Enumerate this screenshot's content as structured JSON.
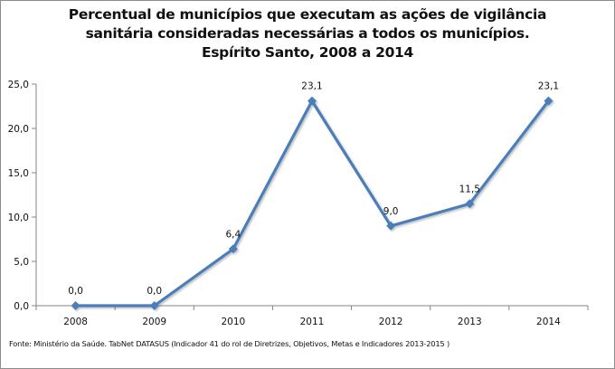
{
  "chart_data": {
    "type": "line",
    "title": "Percentual de municípios que executam as ações de vigilância sanitária consideradas necessárias a todos os municípios. Espírito Santo, 2008 a 2014",
    "title_lines": [
      "Percentual de municípios que executam as ações de vigilância",
      "sanitária consideradas necessárias a todos os municípios.",
      "Espírito Santo, 2008 a 2014"
    ],
    "xlabel": "",
    "ylabel": "",
    "categories": [
      "2008",
      "2009",
      "2010",
      "2011",
      "2012",
      "2013",
      "2014"
    ],
    "series": [
      {
        "name": "Percentual",
        "values": [
          0.0,
          0.0,
          6.4,
          23.1,
          9.0,
          11.5,
          23.1
        ],
        "data_labels": [
          "0,0",
          "0,0",
          "6,4",
          "23,1",
          "9,0",
          "11,5",
          "23,1"
        ],
        "color": "#4a7ebb",
        "marker": "diamond"
      }
    ],
    "ylim": [
      0,
      25
    ],
    "yticks": [
      0,
      5,
      10,
      15,
      20,
      25
    ],
    "ytick_labels": [
      "0,0",
      "5,0",
      "10,0",
      "15,0",
      "20,0",
      "25,0"
    ],
    "grid": false,
    "legend": "none",
    "source_note": "Fonte: Ministério da Saúde. TabNet DATASUS (Indicador 41 do rol de Diretrizes, Objetivos, Metas e Indicadores 2013-2015 )"
  }
}
